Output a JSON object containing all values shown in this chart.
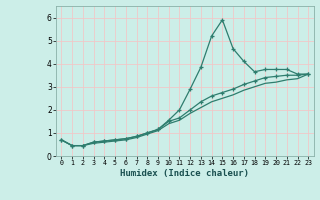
{
  "xlabel": "Humidex (Indice chaleur)",
  "bg_color": "#cceee8",
  "grid_color": "#f0c8c8",
  "line_color": "#2e7d6e",
  "xlim": [
    -0.5,
    23.5
  ],
  "ylim": [
    0,
    6.5
  ],
  "xticks": [
    0,
    1,
    2,
    3,
    4,
    5,
    6,
    7,
    8,
    9,
    10,
    11,
    12,
    13,
    14,
    15,
    16,
    17,
    18,
    19,
    20,
    21,
    22,
    23
  ],
  "yticks": [
    0,
    1,
    2,
    3,
    4,
    5,
    6
  ],
  "line1_x": [
    0,
    1,
    2,
    3,
    4,
    5,
    6,
    7,
    8,
    9,
    10,
    11,
    12,
    13,
    14,
    15,
    16,
    17,
    18,
    19,
    20,
    21,
    22,
    23
  ],
  "line1_y": [
    0.7,
    0.45,
    0.45,
    0.6,
    0.65,
    0.7,
    0.75,
    0.85,
    1.0,
    1.15,
    1.55,
    2.0,
    2.9,
    3.85,
    5.2,
    5.9,
    4.65,
    4.1,
    3.65,
    3.75,
    3.75,
    3.75,
    3.55,
    3.55
  ],
  "line2_x": [
    0,
    1,
    2,
    3,
    4,
    5,
    6,
    7,
    8,
    9,
    10,
    11,
    12,
    13,
    14,
    15,
    16,
    17,
    18,
    19,
    20,
    21,
    22,
    23
  ],
  "line2_y": [
    0.7,
    0.45,
    0.45,
    0.6,
    0.65,
    0.7,
    0.75,
    0.85,
    1.0,
    1.15,
    1.5,
    1.65,
    2.0,
    2.35,
    2.6,
    2.75,
    2.9,
    3.1,
    3.25,
    3.4,
    3.45,
    3.5,
    3.5,
    3.55
  ],
  "line3_x": [
    0,
    1,
    2,
    3,
    4,
    5,
    6,
    7,
    8,
    9,
    10,
    11,
    12,
    13,
    14,
    15,
    16,
    17,
    18,
    19,
    20,
    21,
    22,
    23
  ],
  "line3_y": [
    0.7,
    0.45,
    0.45,
    0.55,
    0.6,
    0.65,
    0.7,
    0.8,
    0.95,
    1.1,
    1.4,
    1.55,
    1.85,
    2.1,
    2.35,
    2.5,
    2.65,
    2.85,
    3.0,
    3.15,
    3.2,
    3.3,
    3.35,
    3.55
  ]
}
